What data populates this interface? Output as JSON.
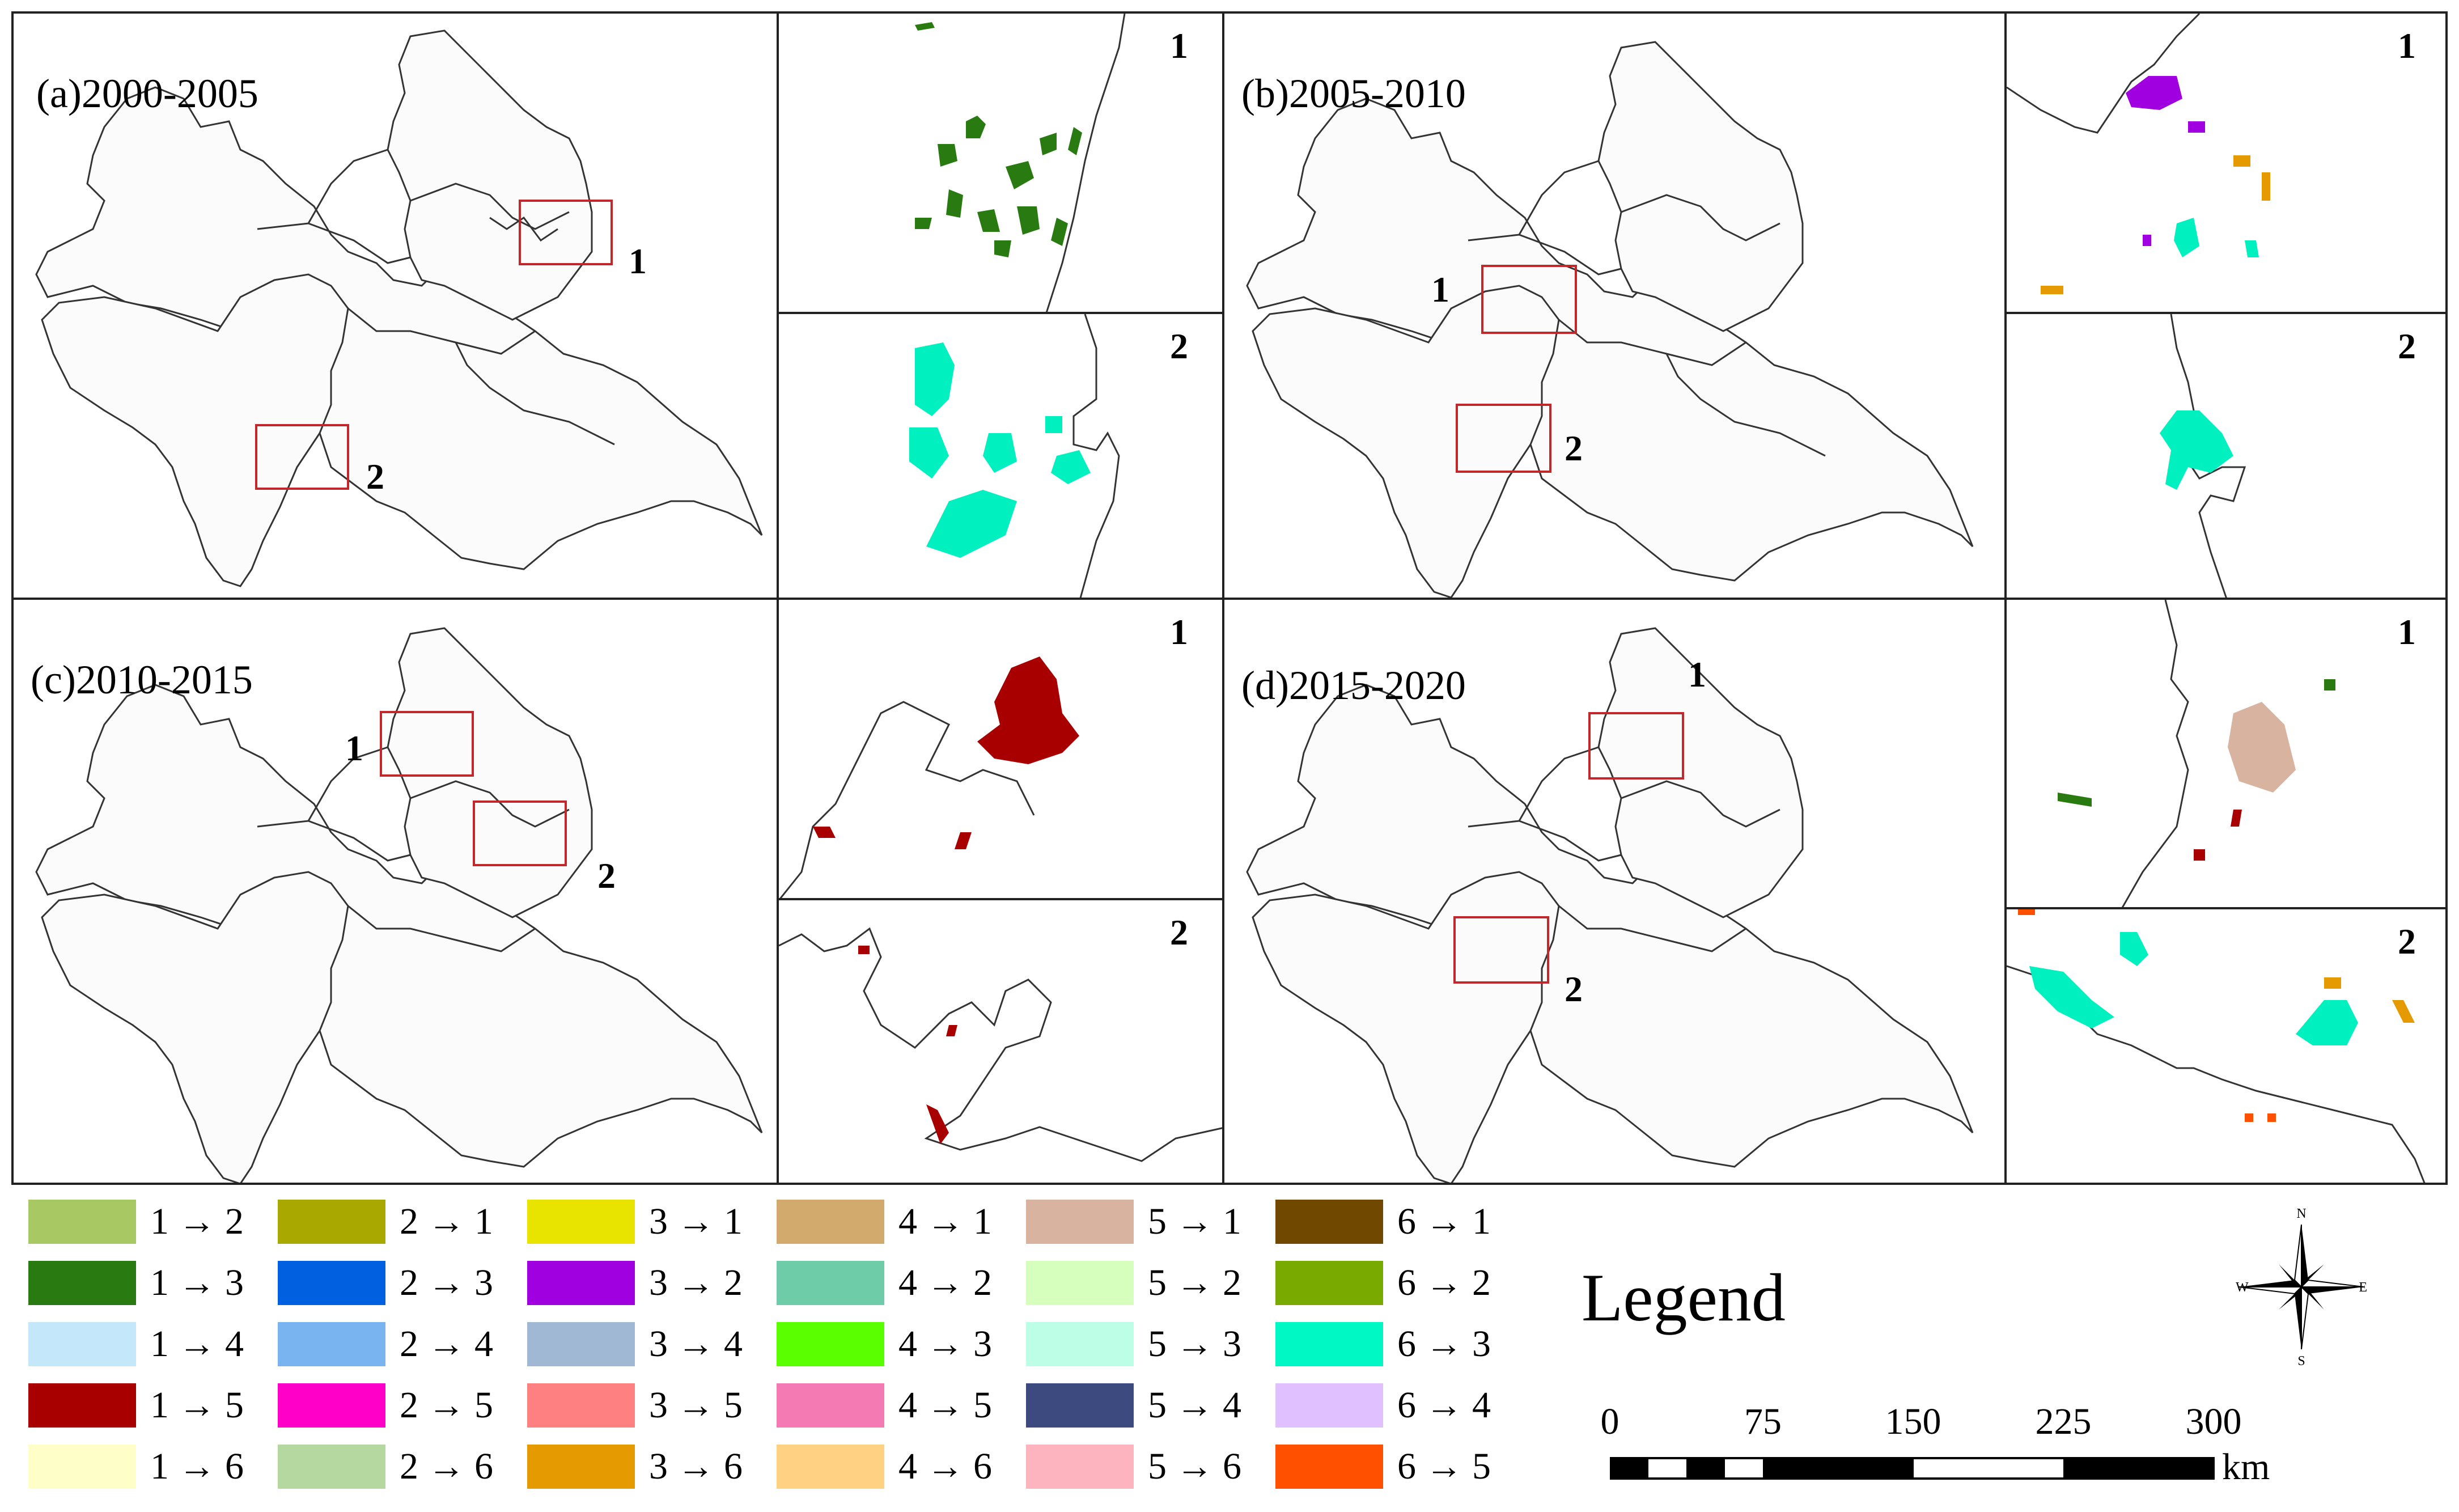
{
  "panels": [
    {
      "id": "a",
      "title": "(a)2000-2005",
      "box1_label": "1",
      "box2_label": "2",
      "inset1_label": "1",
      "inset2_label": "2"
    },
    {
      "id": "b",
      "title": "(b)2005-2010",
      "box1_label": "1",
      "box2_label": "2",
      "inset1_label": "1",
      "inset2_label": "2"
    },
    {
      "id": "c",
      "title": "(c)2010-2015",
      "box1_label": "1",
      "box2_label": "2",
      "inset1_label": "1",
      "inset2_label": "2"
    },
    {
      "id": "d",
      "title": "(d)2015-2020",
      "box1_label": "1",
      "box2_label": "2",
      "inset1_label": "1",
      "inset2_label": "2"
    }
  ],
  "legend": {
    "title": "Legend",
    "items": [
      {
        "label": "1 → 2",
        "color": "#a8c864"
      },
      {
        "label": "1 → 3",
        "color": "#2a7a12"
      },
      {
        "label": "1 → 4",
        "color": "#c4e8fa"
      },
      {
        "label": "1 → 5",
        "color": "#a80000"
      },
      {
        "label": "1 → 6",
        "color": "#fefec8"
      },
      {
        "label": "2 → 1",
        "color": "#a8a800"
      },
      {
        "label": "2 → 3",
        "color": "#0060e0"
      },
      {
        "label": "2 → 4",
        "color": "#7ab4f0"
      },
      {
        "label": "2 → 5",
        "color": "#ff00c8"
      },
      {
        "label": "2 → 6",
        "color": "#b4d8a0"
      },
      {
        "label": "3 → 1",
        "color": "#e8e400"
      },
      {
        "label": "3 → 2",
        "color": "#a000e0"
      },
      {
        "label": "3 → 4",
        "color": "#a0b8d4"
      },
      {
        "label": "3 → 5",
        "color": "#ff8080"
      },
      {
        "label": "3 → 6",
        "color": "#e49a00"
      },
      {
        "label": "4 → 1",
        "color": "#d2aa6e"
      },
      {
        "label": "4 → 2",
        "color": "#6ecca8"
      },
      {
        "label": "4 → 3",
        "color": "#5aff00"
      },
      {
        "label": "4 → 5",
        "color": "#f47ab4"
      },
      {
        "label": "4 → 6",
        "color": "#fed282"
      },
      {
        "label": "5 → 1",
        "color": "#d8b4a0"
      },
      {
        "label": "5 → 2",
        "color": "#d6ffbe"
      },
      {
        "label": "5 → 3",
        "color": "#bcffe6"
      },
      {
        "label": "5 → 4",
        "color": "#3c4a80"
      },
      {
        "label": "5 → 6",
        "color": "#feb4be"
      },
      {
        "label": "6 → 1",
        "color": "#704800"
      },
      {
        "label": "6 → 2",
        "color": "#78aa00"
      },
      {
        "label": "6 → 3",
        "color": "#00f8c4"
      },
      {
        "label": "6 → 4",
        "color": "#e0c0ff"
      },
      {
        "label": "6 → 5",
        "color": "#ff5000"
      }
    ]
  },
  "compass": {
    "n": "N",
    "s": "S",
    "e": "E",
    "w": "W"
  },
  "scale_bar": {
    "ticks": [
      "0",
      "75",
      "150",
      "225",
      "300"
    ],
    "unit": "km"
  },
  "colors": {
    "box": "#c0282c",
    "outline": "#333333",
    "frame": "#222222"
  }
}
